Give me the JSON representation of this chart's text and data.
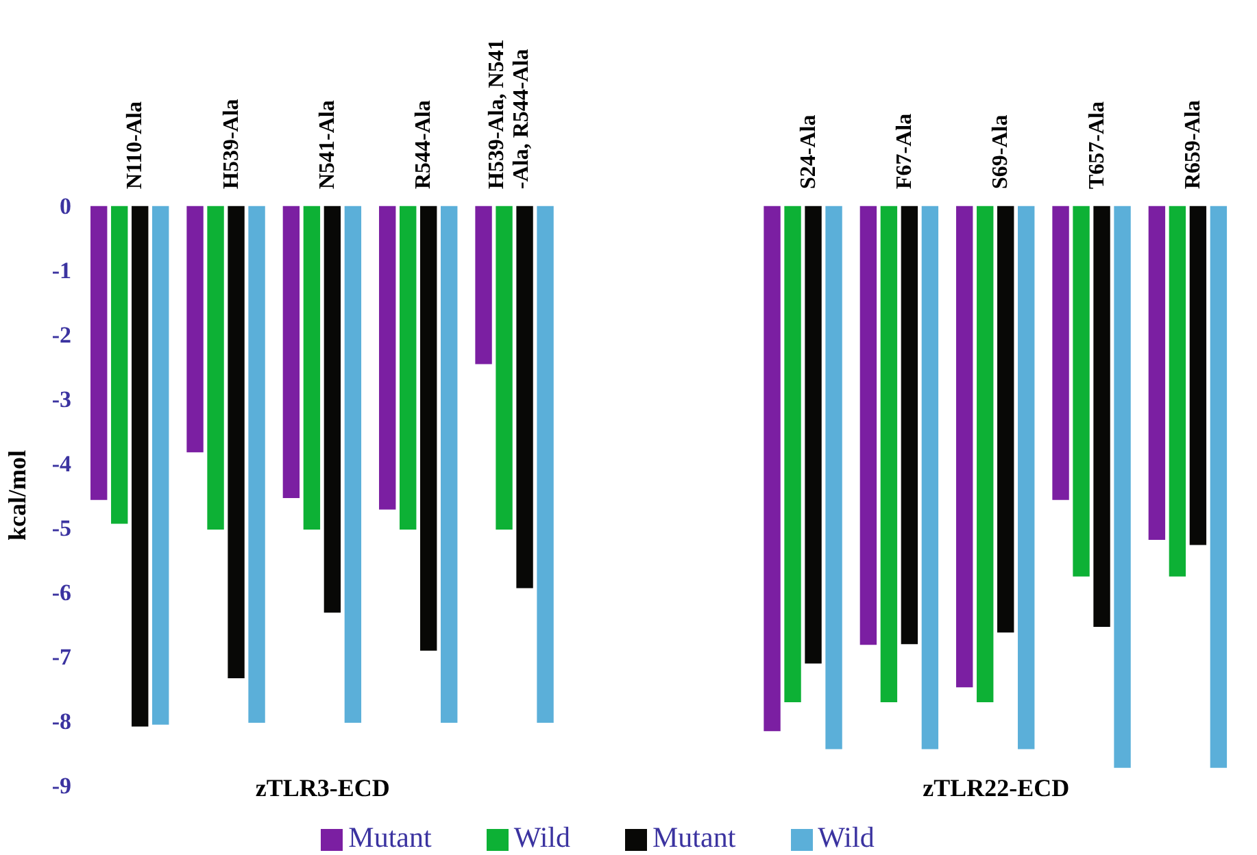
{
  "chart_data": {
    "type": "bar",
    "ylabel": "kcal/mol",
    "categories": [
      "N110-Ala",
      "H539-Ala",
      "N541-Ala",
      "R544-Ala",
      "H539-Ala, N541-Ala, R544-Ala",
      "S24-Ala",
      "F67-Ala",
      "S69-Ala",
      "T657-Ala",
      "R659-Ala"
    ],
    "series": [
      {
        "name": "Mutant",
        "color": "#7b1fa2",
        "values": [
          -4.58,
          -3.84,
          -4.55,
          -4.73,
          -2.47,
          -8.17,
          -6.83,
          -7.49,
          -4.58,
          -5.2
        ]
      },
      {
        "name": "Wild",
        "color": "#0db135",
        "values": [
          -4.95,
          -5.04,
          -5.04,
          -5.04,
          -5.04,
          -7.72,
          -7.72,
          -7.72,
          -5.77,
          -5.77
        ]
      },
      {
        "name": "Mutant",
        "color": "#080806",
        "values": [
          -8.1,
          -7.35,
          -6.33,
          -6.92,
          -5.95,
          -7.12,
          -6.82,
          -6.64,
          -6.55,
          -5.28
        ]
      },
      {
        "name": "Wild",
        "color": "#5bafd9",
        "values": [
          -8.07,
          -8.04,
          -8.04,
          -8.04,
          -8.04,
          -8.45,
          -8.45,
          -8.45,
          -8.74,
          -8.74
        ]
      }
    ],
    "ylim": [
      -9,
      0
    ],
    "yticks": [
      0,
      -1,
      -2,
      -3,
      -4,
      -5,
      -6,
      -7,
      -8,
      -9
    ],
    "grid": false,
    "legend": "bottom",
    "annotations": [
      "zTLR3-ECD",
      "zTLR22-ECD"
    ]
  }
}
